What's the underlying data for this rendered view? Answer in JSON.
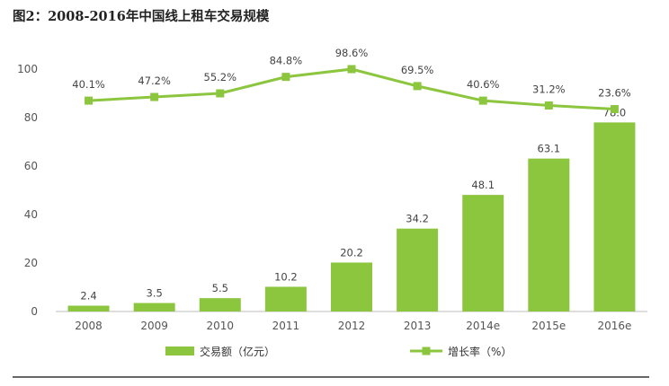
{
  "chart_data": {
    "type": "bar",
    "title": "图2：2008-2016年中国线上租车交易规模",
    "categories": [
      "2008",
      "2009",
      "2010",
      "2011",
      "2012",
      "2013",
      "2014e",
      "2015e",
      "2016e"
    ],
    "series": [
      {
        "name": "交易额（亿元）",
        "type": "bar",
        "values": [
          2.4,
          3.5,
          5.5,
          10.2,
          20.2,
          34.2,
          48.1,
          63.1,
          78.0
        ],
        "labels": [
          "2.4",
          "3.5",
          "5.5",
          "10.2",
          "20.2",
          "34.2",
          "48.1",
          "63.1",
          "78.0"
        ]
      },
      {
        "name": "增长率（%）",
        "type": "line",
        "values": [
          40.1,
          47.2,
          55.2,
          84.8,
          98.6,
          69.5,
          40.6,
          31.2,
          23.6
        ],
        "labels": [
          "40.1%",
          "47.2%",
          "55.2%",
          "84.8%",
          "98.6%",
          "69.5%",
          "40.6%",
          "31.2%",
          "23.6%"
        ]
      }
    ],
    "y_ticks": [
      "0",
      "20",
      "40",
      "60",
      "80",
      "100"
    ],
    "ylim": [
      0,
      100
    ],
    "line_plot_values": [
      87,
      88.5,
      90,
      96.8,
      100,
      93,
      87,
      85,
      83.5
    ],
    "grid": false,
    "legend_position": "bottom-center",
    "colors": {
      "bar": "#8cc63f",
      "line": "#8cc63f",
      "marker": "#8cc63f",
      "axis": "#bdbdbd",
      "rule": "#333333"
    }
  }
}
